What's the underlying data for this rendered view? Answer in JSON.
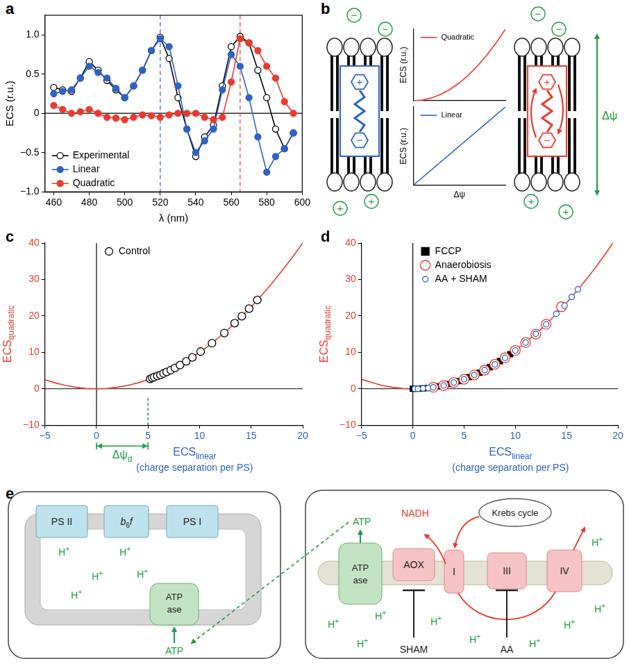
{
  "chart_data": [
    {
      "panel": "a",
      "type": "line",
      "x_label": "λ (nm)",
      "y_label": "ECS (r.u.)",
      "x": [
        460,
        465,
        470,
        475,
        480,
        485,
        490,
        495,
        500,
        505,
        510,
        515,
        520,
        525,
        530,
        535,
        540,
        545,
        550,
        555,
        560,
        565,
        570,
        575,
        580,
        585,
        590,
        595
      ],
      "series": [
        {
          "name": "Experimental",
          "color": "#000000",
          "marker": "open_circle",
          "values": [
            0.33,
            0.3,
            0.28,
            0.45,
            0.66,
            0.55,
            0.42,
            0.3,
            0.2,
            0.35,
            0.55,
            0.8,
            0.97,
            0.7,
            0.2,
            -0.2,
            -0.55,
            -0.3,
            -0.15,
            0.35,
            0.85,
            0.98,
            0.9,
            0.55,
            0.2,
            -0.2,
            -0.45,
            -0.25
          ]
        },
        {
          "name": "Linear",
          "color": "#2e62c4",
          "marker": "circle",
          "values": [
            0.25,
            0.28,
            0.3,
            0.45,
            0.6,
            0.52,
            0.45,
            0.32,
            0.2,
            0.35,
            0.55,
            0.8,
            0.95,
            0.85,
            0.35,
            -0.2,
            -0.5,
            -0.35,
            -0.2,
            0.3,
            0.75,
            0.6,
            0.2,
            -0.3,
            -0.75,
            -0.55,
            -0.45,
            -0.25
          ]
        },
        {
          "name": "Quadratic",
          "color": "#e83a2e",
          "marker": "circle",
          "values": [
            0.1,
            0.05,
            0.0,
            0.02,
            0.05,
            0.0,
            -0.05,
            -0.06,
            -0.08,
            -0.05,
            -0.02,
            -0.03,
            -0.05,
            -0.02,
            0.0,
            0.0,
            0.0,
            -0.05,
            -0.08,
            -0.05,
            0.4,
            0.95,
            0.9,
            0.8,
            0.6,
            0.45,
            0.15,
            0.0
          ]
        }
      ],
      "xlim": [
        455,
        600
      ],
      "xticks": [
        460,
        480,
        500,
        520,
        540,
        560,
        580,
        600
      ],
      "ylim": [
        -1,
        1.25
      ],
      "yticks": [
        {
          "value": -1,
          "label": "−1.0"
        },
        {
          "value": -0.5,
          "label": "−0.5"
        },
        0,
        0.5,
        {
          "value": 1,
          "label": "1.0"
        }
      ],
      "reference_lines": [
        {
          "axis": "y",
          "value": 0,
          "color": "#000000",
          "line_style": "solid"
        },
        {
          "axis": "x",
          "value": 520,
          "color": "#2e62c4",
          "line_style": "dashed"
        },
        {
          "axis": "x",
          "value": 565,
          "color": "#e83a2e",
          "line_style": "dashed"
        }
      ],
      "legend": "bottom-left",
      "grid": false
    },
    {
      "panel": "b",
      "type": "line",
      "y_label": "ECS (r.u.)",
      "x": [
        0,
        0.1,
        0.2,
        0.3,
        0.4,
        0.5,
        0.6,
        0.7,
        0.8,
        0.9,
        1
      ],
      "series": [
        {
          "name": "Quadratic",
          "color": "#e83a2e",
          "marker": "none",
          "values": [
            0,
            0.01,
            0.04,
            0.09,
            0.16,
            0.25,
            0.36,
            0.49,
            0.64,
            0.81,
            1
          ]
        }
      ],
      "xlim": [
        0,
        1
      ],
      "ylim": [
        0,
        1
      ],
      "xticks": [],
      "yticks": [],
      "tick_labels": false,
      "legend": "top-left",
      "grid": false
    },
    {
      "panel": "b",
      "type": "line",
      "x_label": "Δψ",
      "y_label": "ECS (r.u.)",
      "x": [
        0,
        1
      ],
      "series": [
        {
          "name": "Linear",
          "color": "#2e62c4",
          "marker": "none",
          "values": [
            0,
            1
          ]
        }
      ],
      "xlim": [
        0,
        1
      ],
      "ylim": [
        0,
        1
      ],
      "xticks": [],
      "yticks": [],
      "tick_labels": false,
      "legend": "top-left",
      "grid": false
    },
    {
      "panel": "c",
      "type": "scatter",
      "x_label": {
        "text": "ECS",
        "subscript": "linear",
        "second_line": "(charge separation per PS)",
        "color": "#2e62c4"
      },
      "y_label": {
        "text": "ECS",
        "subscript": "quadratic",
        "color": "#e83a2e"
      },
      "series": [
        {
          "type": "line",
          "color": "#e83a2e",
          "marker": "none",
          "x": [
            -5,
            -4,
            -3,
            -2,
            -1,
            0,
            1,
            2,
            3,
            4,
            5,
            6,
            7,
            8,
            9,
            10,
            11,
            12,
            13,
            14,
            15,
            16,
            17,
            18,
            19,
            20
          ],
          "values": [
            2.5,
            1.6,
            0.9,
            0.4,
            0.1,
            0,
            0.1,
            0.4,
            0.9,
            1.6,
            2.5,
            3.6,
            4.9,
            6.4,
            8.1,
            10,
            12.1,
            14.4,
            16.9,
            19.6,
            22.5,
            25.6,
            28.9,
            32.4,
            36.1,
            40
          ]
        },
        {
          "name": "Control",
          "type": "scatter",
          "color": "#000000",
          "marker": "open_circle",
          "x": [
            5.2,
            5.4,
            5.6,
            5.9,
            6.2,
            6.5,
            6.8,
            7.2,
            7.6,
            8.1,
            8.7,
            9.3,
            10.1,
            11.2,
            12.4,
            13.4,
            14.1,
            14.8,
            15.6
          ],
          "values": [
            2.7,
            3.0,
            3.2,
            3.5,
            3.8,
            4.2,
            4.6,
            5.1,
            5.7,
            6.5,
            7.5,
            8.6,
            10.2,
            12.5,
            15.3,
            18.0,
            19.9,
            22.0,
            24.4
          ]
        }
      ],
      "xlim": [
        -5,
        20
      ],
      "xticks": [
        {
          "value": -5,
          "label": "−5"
        },
        0,
        5,
        10,
        15,
        20
      ],
      "ylim": [
        -10,
        40
      ],
      "yticks": [
        {
          "value": -10,
          "label": "−10"
        },
        0,
        10,
        20,
        30,
        40
      ],
      "reference_lines": [
        {
          "axis": "x",
          "value": 0,
          "color": "#000000",
          "line_style": "solid"
        },
        {
          "axis": "y",
          "value": 0,
          "color": "#000000",
          "line_style": "solid"
        }
      ],
      "annotations": [
        {
          "text": "Δψ",
          "subscript": "d",
          "from": 0,
          "to": 5,
          "color": "#1d9a46"
        }
      ],
      "legend": "top-left",
      "grid": false
    },
    {
      "panel": "d",
      "type": "scatter",
      "x_label": {
        "text": "ECS",
        "subscript": "linear",
        "second_line": "(charge separation per PS)",
        "color": "#2e62c4"
      },
      "y_label": {
        "text": "ECS",
        "subscript": "quadratic",
        "color": "#e83a2e"
      },
      "series": [
        {
          "type": "line",
          "color": "#e83a2e",
          "marker": "none",
          "x": [
            -5,
            -4,
            -3,
            -2,
            -1,
            0,
            1,
            2,
            3,
            4,
            5,
            6,
            7,
            8,
            9,
            10,
            11,
            12,
            13,
            14,
            15,
            16,
            17,
            18,
            19,
            19.5
          ],
          "values": [
            2.6,
            1.7,
            0.9,
            0.4,
            0.1,
            0,
            0.1,
            0.4,
            0.9,
            1.7,
            2.6,
            3.8,
            5.1,
            6.7,
            8.5,
            10.5,
            12.7,
            15.1,
            17.7,
            20.6,
            23.6,
            26.9,
            30.3,
            34.0,
            37.9,
            40.0
          ]
        },
        {
          "name": "FCCP",
          "type": "scatter",
          "color": "#000000",
          "marker": "square",
          "x": [
            0,
            0.3,
            0.6,
            1,
            1.5,
            2,
            2.5,
            3,
            3.5,
            4,
            4.5,
            5,
            5.5,
            6,
            6.5,
            7,
            7.5,
            8,
            8.5,
            9,
            9.5,
            10
          ],
          "values": [
            0,
            0,
            0.05,
            0.1,
            0.2,
            0.4,
            0.65,
            0.9,
            1.3,
            1.7,
            2.1,
            2.6,
            3.2,
            3.8,
            4.4,
            5.1,
            5.9,
            6.7,
            7.6,
            8.5,
            9.5,
            10.5
          ]
        },
        {
          "name": "Anaerobiosis",
          "type": "scatter",
          "color": "#e83a2e",
          "marker": "open_circle",
          "x": [
            2,
            3,
            4,
            5,
            6,
            7,
            8,
            9,
            10,
            11,
            12,
            13,
            14.5
          ],
          "values": [
            0.4,
            0.9,
            1.7,
            2.6,
            3.8,
            5.1,
            6.7,
            8.5,
            10.5,
            12.7,
            15.0,
            17.7,
            22.5
          ]
        },
        {
          "name": "AA + SHAM",
          "type": "scatter",
          "color": "#2e62c4",
          "marker": "open_circle",
          "x": [
            0.2,
            0.5,
            1,
            1.5,
            2,
            3,
            4,
            5,
            6,
            7,
            8,
            9,
            10,
            11,
            12,
            13,
            14,
            14.8,
            15.5,
            16.1
          ],
          "values": [
            0,
            0,
            0.1,
            0.2,
            0.4,
            0.9,
            1.7,
            2.6,
            3.8,
            5.1,
            6.7,
            8.5,
            10.5,
            12.7,
            15.1,
            17.7,
            20.6,
            22.8,
            25.2,
            27.3
          ]
        }
      ],
      "xlim": [
        -5,
        20
      ],
      "xticks": [
        {
          "value": -5,
          "label": "−5"
        },
        0,
        5,
        10,
        15,
        20
      ],
      "ylim": [
        -10,
        40
      ],
      "yticks": [
        {
          "value": -10,
          "label": "−10"
        },
        0,
        10,
        20,
        30,
        40
      ],
      "reference_lines": [
        {
          "axis": "x",
          "value": 0,
          "color": "#000000",
          "line_style": "solid"
        },
        {
          "axis": "y",
          "value": 0,
          "color": "#000000",
          "line_style": "solid"
        }
      ],
      "legend": "top-left",
      "grid": false
    }
  ],
  "diagrams": [
    {
      "panel": "b",
      "membrane_charges": {
        "top": "−",
        "bottom": "+",
        "color": "#1d9a46"
      },
      "molecules": [
        {
          "charges": [
            "+",
            "−"
          ],
          "color": "#2e62c4"
        },
        {
          "charges": [
            "+",
            "−"
          ],
          "color": "#e83a2e"
        }
      ],
      "potential": {
        "text": "Δψ",
        "color": "#1d9a46"
      }
    },
    {
      "panel": "e",
      "chloroplast": {
        "complexes": [
          {
            "text": "PS II"
          },
          {
            "text": "b",
            "subscript": "6",
            "tail": "f"
          },
          {
            "text": "PS I"
          }
        ],
        "atpase": [
          "ATP",
          "ase"
        ],
        "proton": {
          "text": "H",
          "superscript": "+"
        },
        "product": "ATP"
      },
      "mitochondrion": {
        "atpase": [
          "ATP",
          "ase"
        ],
        "complexes": [
          "AOX",
          "I",
          "III",
          "IV"
        ],
        "cycle": "Krebs cycle",
        "donor": "NADH",
        "product": "ATP",
        "inhibitors": [
          {
            "text": "SHAM",
            "target": "AOX"
          },
          {
            "text": "AA",
            "target": "III"
          }
        ],
        "proton": {
          "text": "H",
          "superscript": "+"
        }
      }
    }
  ]
}
